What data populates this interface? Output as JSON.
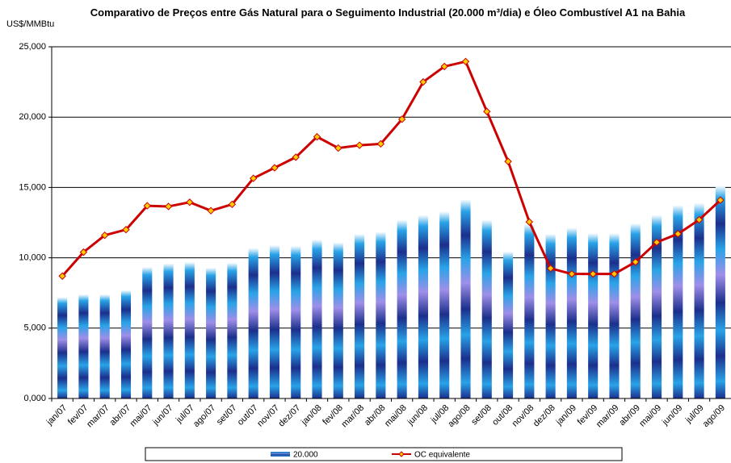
{
  "chart_data": {
    "type": "bar-line",
    "title": "Comparativo de Preços entre Gás Natural para o Seguimento Industrial (20.000 m³/dia) e Óleo Combustível A1 na Bahia",
    "y_axis_label": "US$/MMBtu",
    "categories": [
      "jan/07",
      "fev/07",
      "mar/07",
      "abr/07",
      "mai/07",
      "jun/07",
      "jul/07",
      "ago/07",
      "set/07",
      "out/07",
      "nov/07",
      "dez/07",
      "jan/08",
      "fev/08",
      "mar/08",
      "abr/08",
      "mai/08",
      "jun/08",
      "jul/08",
      "ago/08",
      "set/08",
      "out/08",
      "nov/08",
      "dez/08",
      "jan/09",
      "fev/09",
      "mar/09",
      "abr/09",
      "mai/09",
      "jun/09",
      "jul/09",
      "ago/09"
    ],
    "series": [
      {
        "name": "20.000",
        "type": "bar",
        "color": "#29a3e8",
        "values": [
          7200,
          7400,
          7400,
          7700,
          9350,
          9600,
          9700,
          9300,
          9650,
          10700,
          10900,
          10850,
          11300,
          11100,
          11700,
          11850,
          12700,
          13050,
          13300,
          14150,
          12700,
          10450,
          12400,
          11700,
          12150,
          11750,
          11750,
          12450,
          13050,
          13750,
          13900,
          15150
        ]
      },
      {
        "name": "OC equivalente",
        "type": "line",
        "color": "#cc0000",
        "marker_color": "#ffcc00",
        "values": [
          8700,
          10400,
          11600,
          12000,
          13700,
          13650,
          13950,
          13350,
          13800,
          15650,
          16400,
          17150,
          18600,
          17800,
          18000,
          18100,
          19850,
          22500,
          23600,
          23950,
          20400,
          16850,
          12550,
          9250,
          8850,
          8850,
          8850,
          9700,
          11100,
          11700,
          12700,
          14100
        ]
      }
    ],
    "ylim": [
      0,
      25000
    ],
    "yticks": [
      {
        "value": 0,
        "label": "0,000"
      },
      {
        "value": 5000,
        "label": "5,000"
      },
      {
        "value": 10000,
        "label": "10,000"
      },
      {
        "value": 15000,
        "label": "15,000"
      },
      {
        "value": 20000,
        "label": "20,000"
      },
      {
        "value": 25000,
        "label": "25,000"
      }
    ],
    "grid": true,
    "legend": "bottom"
  }
}
